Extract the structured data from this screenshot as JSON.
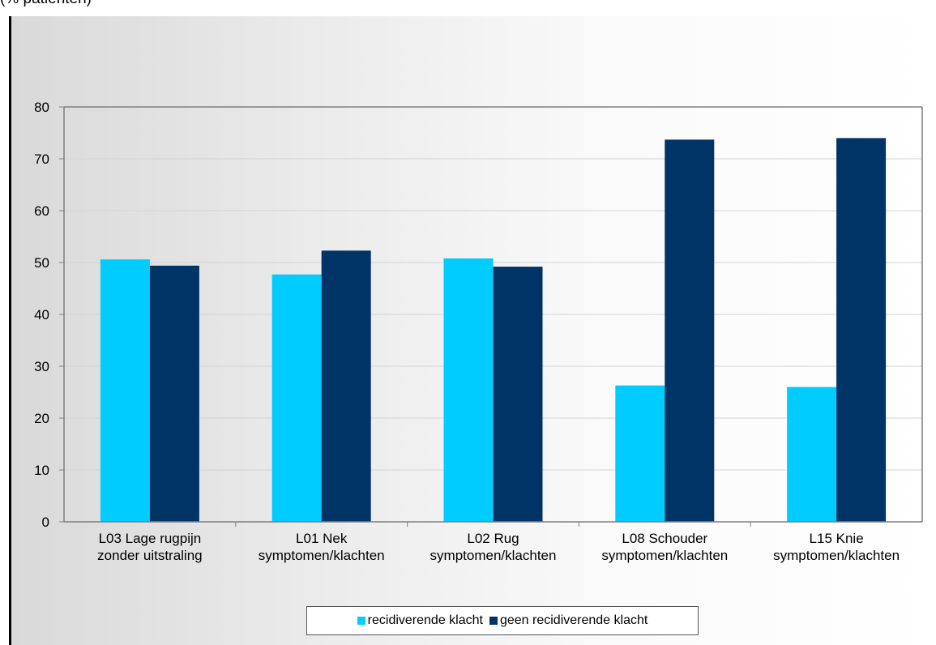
{
  "chart_data": {
    "type": "bar",
    "title": "",
    "ylabel": "(% patiënten)",
    "xlabel": "",
    "ylim": [
      0,
      80
    ],
    "yticks": [
      0,
      10,
      20,
      30,
      40,
      50,
      60,
      70,
      80
    ],
    "grid": true,
    "legend_position": "bottom",
    "categories": [
      [
        "L03 Lage rugpijn",
        "zonder uitstraling"
      ],
      [
        "L01 Nek",
        "symptomen/klachten"
      ],
      [
        "L02 Rug",
        "symptomen/klachten"
      ],
      [
        "L08 Schouder",
        "symptomen/klachten"
      ],
      [
        "L15 Knie",
        "symptomen/klachten"
      ]
    ],
    "series": [
      {
        "name": "recidiverende klacht",
        "color": "#00ccff",
        "values": [
          50.6,
          47.7,
          50.8,
          26.3,
          26.0
        ]
      },
      {
        "name": "geen recidiverende klacht",
        "color": "#003366",
        "values": [
          49.4,
          52.3,
          49.2,
          73.7,
          74.0
        ]
      }
    ]
  }
}
